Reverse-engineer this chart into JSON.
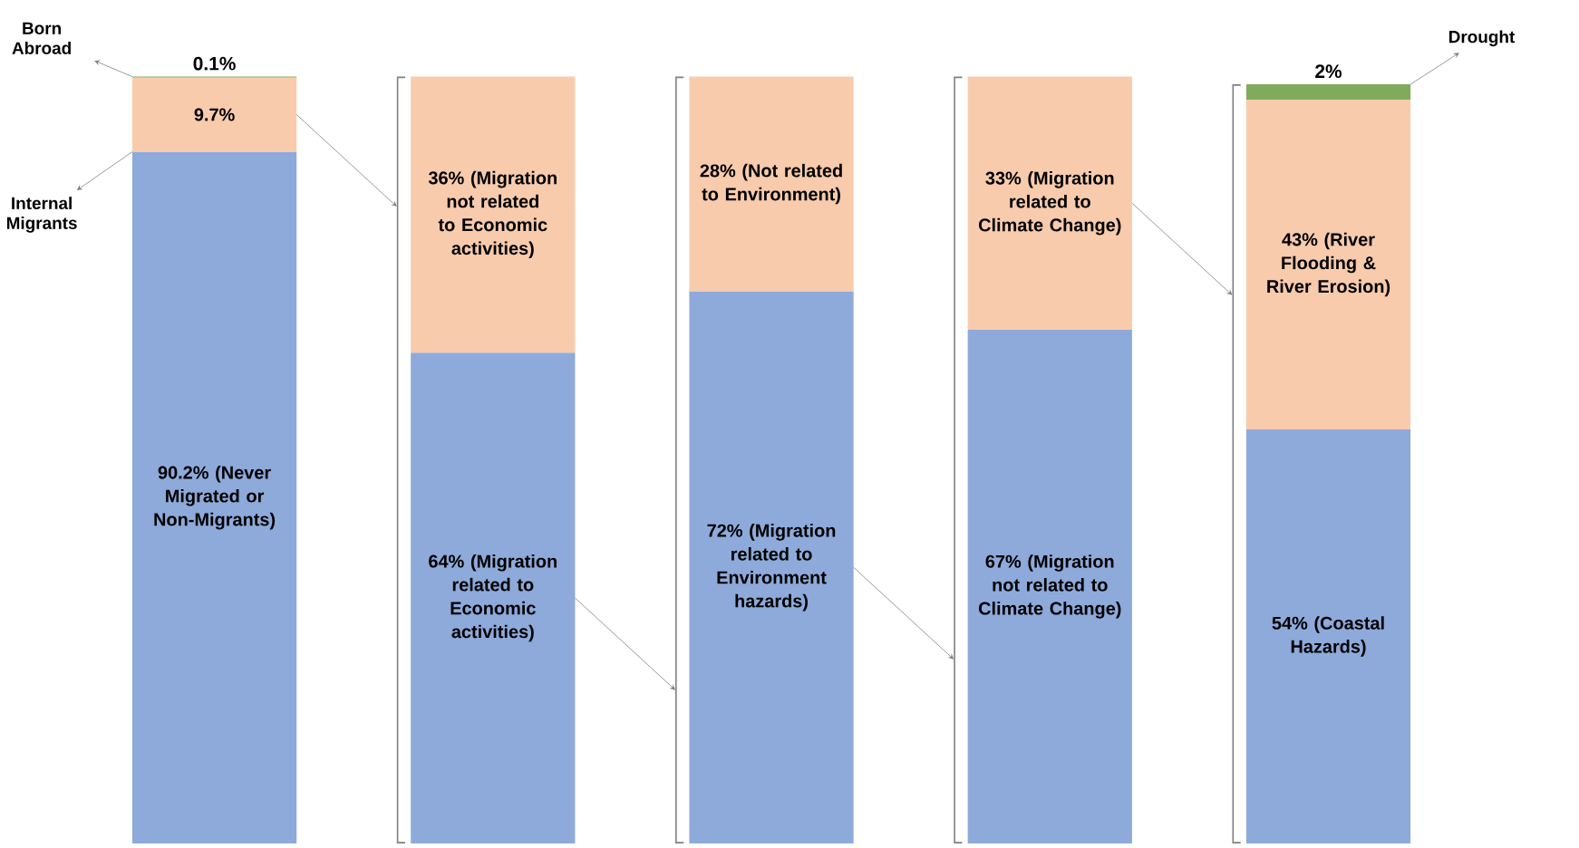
{
  "chart_data": {
    "type": "bar",
    "stacked": true,
    "categories": [
      null,
      null,
      null,
      null,
      null
    ],
    "series": [
      {
        "color": "#8eaadb",
        "values": [
          90.2,
          64,
          72,
          67,
          54
        ],
        "value_labels": [
          "90.2% (Never Migrated or Non-Migrants)",
          "64% (Migration related to Economic activities)",
          "72% (Migration related to Environment hazards)",
          "67% (Migration not related to Climate Change)",
          "54% (Coastal Hazards)"
        ]
      },
      {
        "color": "#f8cbad",
        "values": [
          9.7,
          36,
          28,
          33,
          43
        ],
        "value_labels": [
          "9.7%",
          "36% (Migration not related to Economic activities)",
          "28% (Not related to Environment)",
          "33% (Migration related to Climate Change)",
          "43% (River Flooding & River Erosion)"
        ]
      },
      {
        "color": "#7fab5a",
        "values": [
          0.1,
          null,
          null,
          null,
          2
        ],
        "value_labels": [
          "0.1%",
          null,
          null,
          null,
          "2%"
        ]
      }
    ],
    "annotations": [
      "Born Abroad",
      "Internal Migrants",
      "Drought"
    ]
  }
}
